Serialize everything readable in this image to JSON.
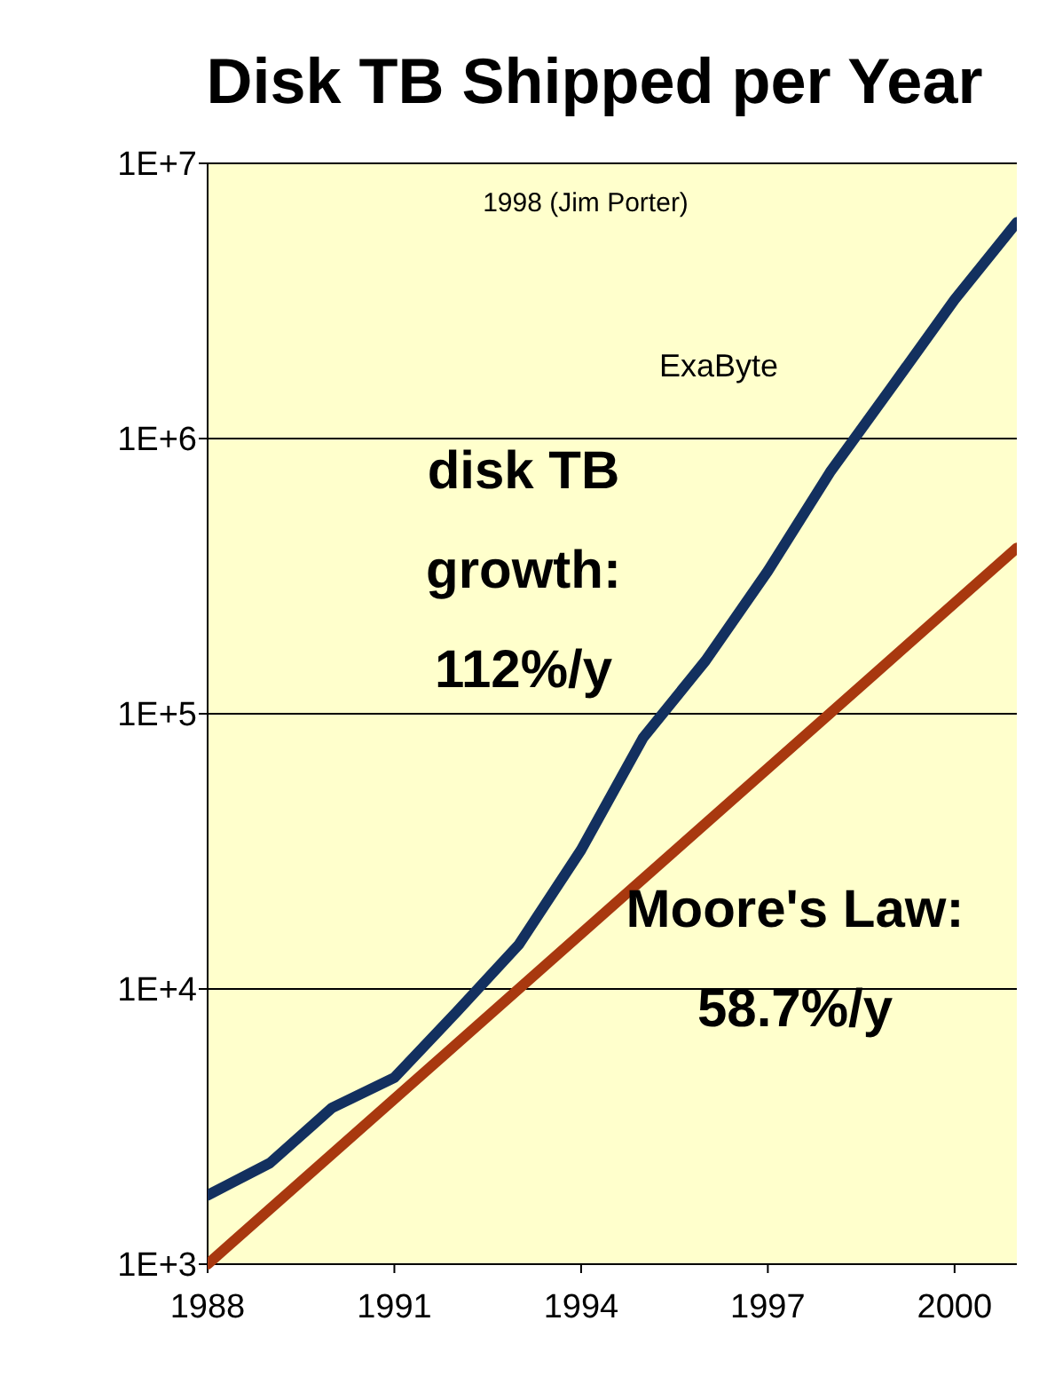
{
  "chart_data": {
    "type": "line",
    "title": "Disk TB Shipped per Year",
    "x": [
      1988,
      1989,
      1990,
      1991,
      1992,
      1993,
      1994,
      1995,
      1996,
      1997,
      1998,
      1999,
      2000,
      2001
    ],
    "series": [
      {
        "color": "#13305f",
        "values": [
          1780,
          2330,
          3700,
          4760,
          8250,
          14500,
          32000,
          82000,
          156000,
          330000,
          755000,
          1550000,
          3200000,
          6100000
        ]
      },
      {
        "color": "#a8380f",
        "x": [
          1988,
          2001
        ],
        "values": [
          1000,
          400000
        ]
      }
    ],
    "xlim": [
      1988,
      2001
    ],
    "xticks": [
      1988,
      1991,
      1994,
      1997,
      2000
    ],
    "ylim": [
      1000,
      10000000
    ],
    "yticks": [
      {
        "value": 1000,
        "label": "1E+3"
      },
      {
        "value": 10000,
        "label": "1E+4"
      },
      {
        "value": 100000,
        "label": "1E+5"
      },
      {
        "value": 1000000,
        "label": "1E+6"
      },
      {
        "value": 10000000,
        "label": "1E+7"
      }
    ],
    "log": "y",
    "grid": "y",
    "marker": "none",
    "line_style": "solid",
    "annotations": [
      "1998 (Jim Porter)",
      "ExaByte",
      "disk TB\ngrowth:\n112%/y",
      "Moore's Law:\n58.7%/y"
    ]
  }
}
